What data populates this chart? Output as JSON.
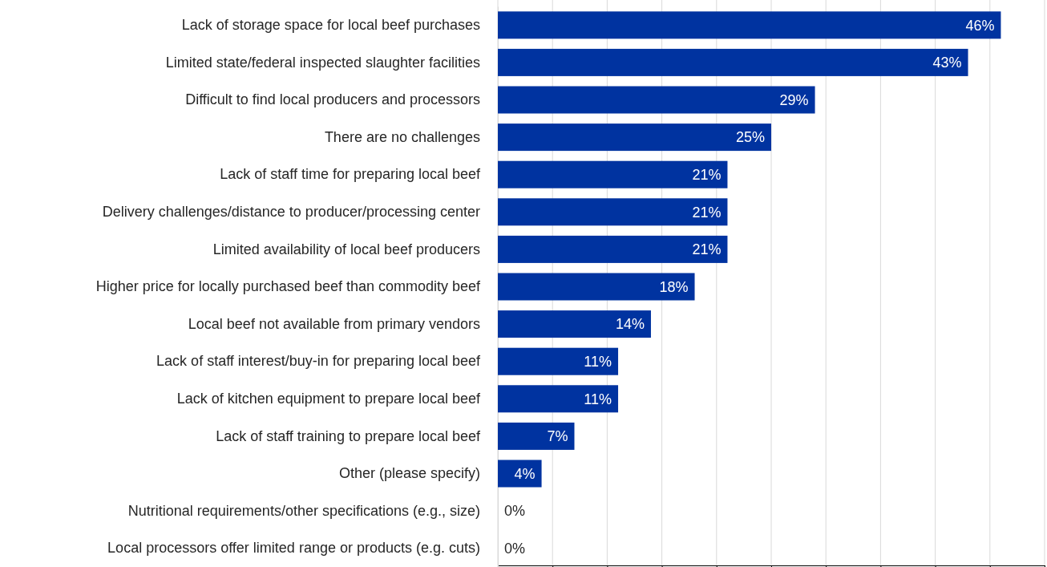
{
  "chart_data": {
    "type": "bar",
    "orientation": "horizontal",
    "categories": [
      "Lack of storage space for local beef purchases",
      "Limited state/federal inspected slaughter facilities",
      "Difficult to find local producers and processors",
      "There are no challenges",
      "Lack of staff time for preparing local beef",
      "Delivery challenges/distance to producer/processing center",
      "Limited availability of local beef producers",
      "Higher price for locally purchased beef than commodity beef",
      "Local beef not available from primary vendors",
      "Lack of staff interest/buy-in for preparing local beef",
      "Lack of kitchen equipment to prepare local beef",
      "Lack of staff training to prepare local beef",
      "Other (please specify)",
      "Nutritional requirements/other specifications (e.g., size)",
      "Local processors offer limited range or products (e.g. cuts)"
    ],
    "values": [
      46,
      43,
      29,
      25,
      21,
      21,
      21,
      18,
      14,
      11,
      11,
      7,
      4,
      0,
      0
    ],
    "value_labels": [
      "46%",
      "43%",
      "29%",
      "25%",
      "21%",
      "21%",
      "21%",
      "18%",
      "14%",
      "11%",
      "11%",
      "7%",
      "4%",
      "0%",
      "0%"
    ],
    "color": "#0033a0",
    "xlim": [
      0,
      50
    ],
    "xticks": [
      {
        "value": 0,
        "label": null
      },
      {
        "value": 5,
        "label": null
      },
      {
        "value": 10,
        "label": null
      },
      {
        "value": 15,
        "label": null
      },
      {
        "value": 20,
        "label": null
      },
      {
        "value": 25,
        "label": null
      },
      {
        "value": 30,
        "label": null
      },
      {
        "value": 35,
        "label": null
      },
      {
        "value": 40,
        "label": null
      },
      {
        "value": 45,
        "label": null
      },
      {
        "value": 50,
        "label": null
      }
    ],
    "grid": "x"
  }
}
